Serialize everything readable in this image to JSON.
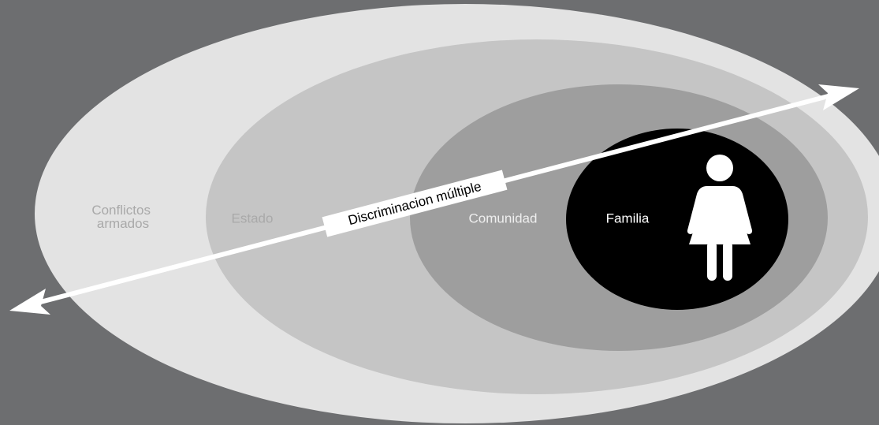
{
  "layers": [
    {
      "label_lines": [
        "Conflictos",
        "armados"
      ]
    },
    {
      "label": "Estado"
    },
    {
      "label": "Comunidad"
    },
    {
      "label": "Familia"
    }
  ],
  "arrow": {
    "label": "Discriminacion múltiple"
  }
}
